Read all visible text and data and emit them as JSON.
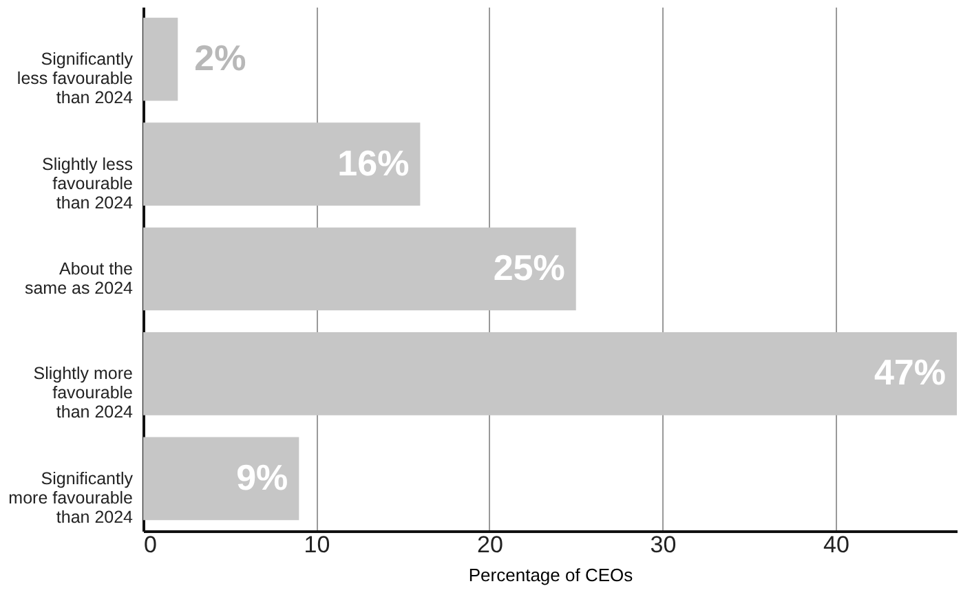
{
  "chart_data": {
    "type": "bar",
    "orientation": "horizontal",
    "categories": [
      "Significantly\nless favourable\nthan 2024",
      "Slightly less\nfavourable\nthan 2024",
      "About the\nsame as 2024",
      "Slightly more\nfavourable\nthan 2024",
      "Significantly\nmore favourable\nthan 2024"
    ],
    "values": [
      2,
      16,
      25,
      47,
      9
    ],
    "value_labels": [
      "2%",
      "16%",
      "25%",
      "47%",
      "9%"
    ],
    "color": "#c6c6c6",
    "xlabel": "Percentage of CEOs",
    "xlim": [
      0,
      47
    ],
    "xticks": [
      0,
      10,
      20,
      30,
      40
    ],
    "grid": "x"
  }
}
